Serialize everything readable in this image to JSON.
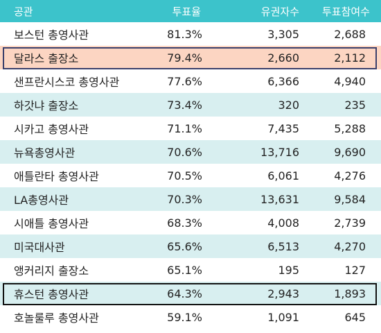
{
  "chart_data": {
    "type": "table",
    "columns": [
      "공관",
      "투표율",
      "유권자수",
      "투표참여수"
    ],
    "rows": [
      {
        "name": "보스턴 총영사관",
        "rate": "81.3%",
        "voters": "3,305",
        "participants": "2,688",
        "highlight": "none"
      },
      {
        "name": "달라스 출장소",
        "rate": "79.4%",
        "voters": "2,660",
        "participants": "2,112",
        "highlight": "salmon"
      },
      {
        "name": "샌프란시스코 총영사관",
        "rate": "77.6%",
        "voters": "6,366",
        "participants": "4,940",
        "highlight": "none"
      },
      {
        "name": "하갓냐 출장소",
        "rate": "73.4%",
        "voters": "320",
        "participants": "235",
        "highlight": "none"
      },
      {
        "name": "시카고 총영사관",
        "rate": "71.1%",
        "voters": "7,435",
        "participants": "5,288",
        "highlight": "none"
      },
      {
        "name": "뉴욕총영사관",
        "rate": "70.6%",
        "voters": "13,716",
        "participants": "9,690",
        "highlight": "none"
      },
      {
        "name": "애틀란타 총영사관",
        "rate": "70.5%",
        "voters": "6,061",
        "participants": "4,276",
        "highlight": "none"
      },
      {
        "name": "LA총영사관",
        "rate": "70.3%",
        "voters": "13,631",
        "participants": "9,584",
        "highlight": "none"
      },
      {
        "name": "시애틀 총영사관",
        "rate": "68.3%",
        "voters": "4,008",
        "participants": "2,739",
        "highlight": "none"
      },
      {
        "name": "미국대사관",
        "rate": "65.6%",
        "voters": "6,513",
        "participants": "4,270",
        "highlight": "none"
      },
      {
        "name": "앵커리지 출장소",
        "rate": "65.1%",
        "voters": "195",
        "participants": "127",
        "highlight": "none"
      },
      {
        "name": "휴스턴 총영사관",
        "rate": "64.3%",
        "voters": "2,943",
        "participants": "1,893",
        "highlight": "outline"
      },
      {
        "name": "호놀룰루 총영사관",
        "rate": "59.1%",
        "voters": "1,091",
        "participants": "645",
        "highlight": "none"
      }
    ]
  },
  "colors": {
    "header_bg": "#3cc3cb",
    "header_text": "#ffffff",
    "stripe_bg": "#d8eff0",
    "salmon_bg": "#fcd5c2",
    "salmon_border": "#3a3f6b",
    "outline_border": "#111111"
  }
}
